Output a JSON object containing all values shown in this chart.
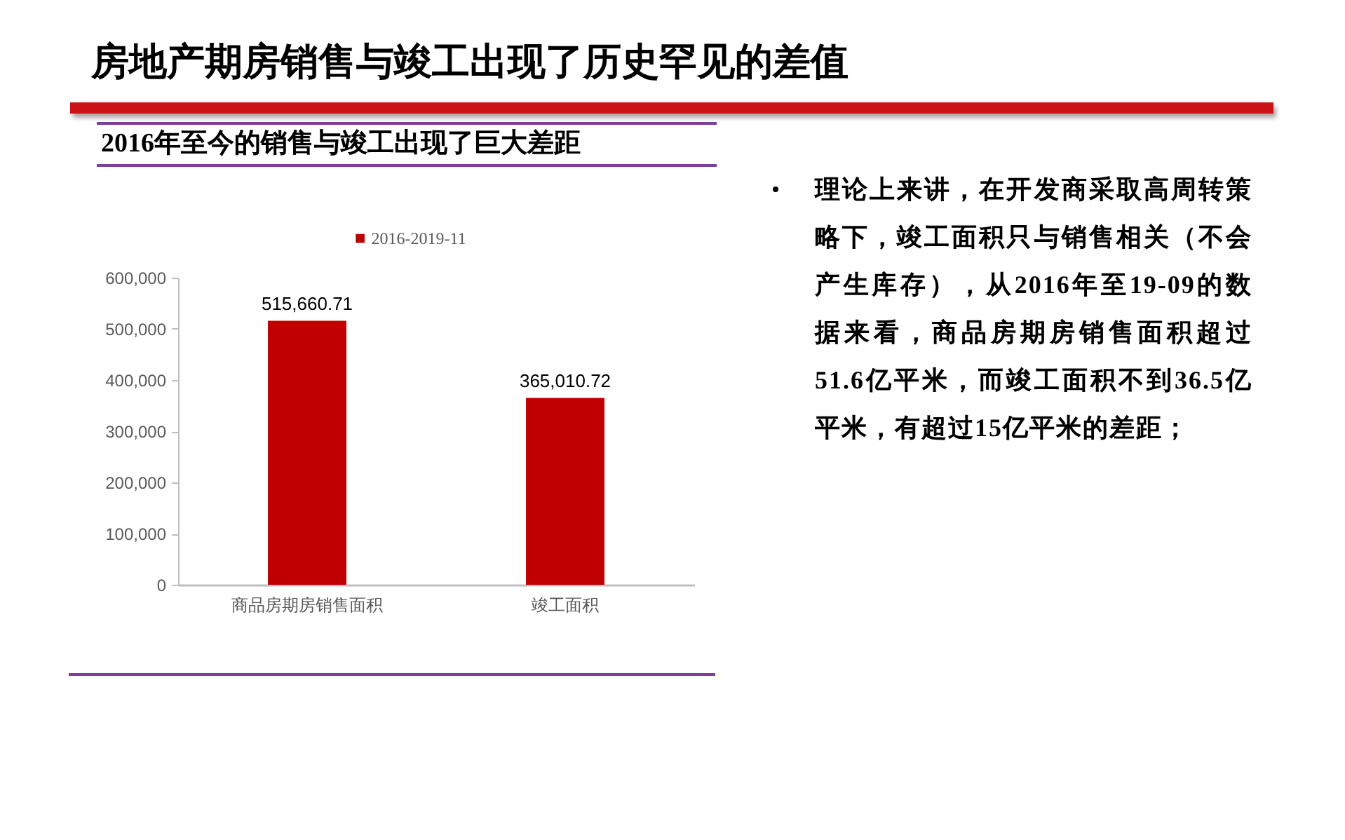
{
  "chart_data": {
    "type": "bar",
    "title": "房地产期房销售与竣工出现了历史罕见的差值",
    "subtitle": "2016年至今的销售与竣工出现了巨大差距",
    "categories": [
      "商品房期房销售面积",
      "竣工面积"
    ],
    "series": [
      {
        "name": "2016-2019-11",
        "color": "#c00000",
        "values": [
          515660.71,
          365010.72
        ],
        "value_labels": [
          "515,660.71",
          "365,010.72"
        ]
      }
    ],
    "ylim": [
      0,
      600000
    ],
    "yticks": [
      0,
      {
        "value": 100000,
        "label": "100,000"
      },
      {
        "value": 200000,
        "label": "200,000"
      },
      {
        "value": 300000,
        "label": "300,000"
      },
      {
        "value": 400000,
        "label": "400,000"
      },
      {
        "value": 500000,
        "label": "500,000"
      },
      {
        "value": 600000,
        "label": "600,000"
      }
    ],
    "grid": false,
    "legend": "top",
    "annotations": [
      "理论上来讲，在开发商采取高周转策略下，竣工面积只与销售相关（不会产生库存），从2016年至19-09的数据来看，商品房期房销售面积超过51.6亿平米，而竣工面积不到36.5亿平米，有超过15亿平米的差距；"
    ]
  }
}
